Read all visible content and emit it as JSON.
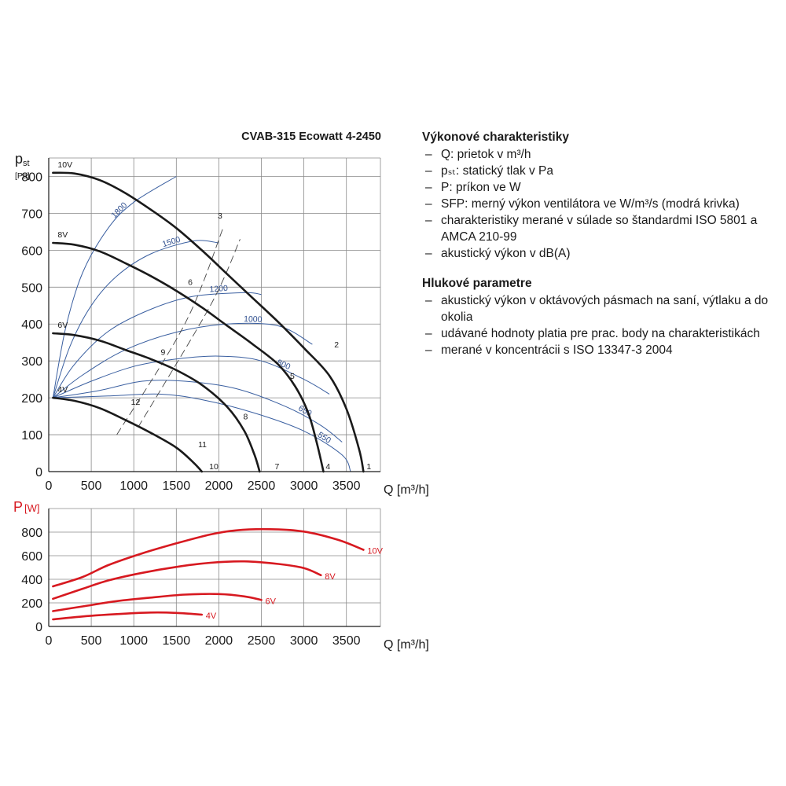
{
  "chart_data": [
    {
      "type": "line",
      "title": "CVAB-315 Ecowatt 4-2450",
      "ylabel_main": "p",
      "ylabel_sub": "st",
      "yunit": "[Pa]",
      "xlabel": "Q [m³/h]",
      "xlim": [
        0,
        3900
      ],
      "ylim": [
        0,
        850
      ],
      "xticks": [
        0,
        500,
        1000,
        1500,
        2000,
        2500,
        3000,
        3500
      ],
      "yticks": [
        0,
        100,
        200,
        300,
        400,
        500,
        600,
        700,
        800
      ],
      "grid": true,
      "series": [
        {
          "name": "10V",
          "points": [
            [
              50,
              810
            ],
            [
              300,
              808
            ],
            [
              600,
              790
            ],
            [
              900,
              755
            ],
            [
              1200,
              710
            ],
            [
              1500,
              660
            ],
            [
              1800,
              600
            ],
            [
              2100,
              535
            ],
            [
              2400,
              470
            ],
            [
              2700,
              405
            ],
            [
              3000,
              335
            ],
            [
              3300,
              260
            ],
            [
              3500,
              170
            ],
            [
              3650,
              60
            ],
            [
              3700,
              0
            ]
          ]
        },
        {
          "name": "8V",
          "points": [
            [
              50,
              620
            ],
            [
              300,
              615
            ],
            [
              600,
              597
            ],
            [
              900,
              565
            ],
            [
              1200,
              530
            ],
            [
              1500,
              490
            ],
            [
              1800,
              445
            ],
            [
              2100,
              395
            ],
            [
              2400,
              345
            ],
            [
              2700,
              290
            ],
            [
              2900,
              230
            ],
            [
              3050,
              160
            ],
            [
              3150,
              80
            ],
            [
              3230,
              0
            ]
          ]
        },
        {
          "name": "6V",
          "points": [
            [
              50,
              375
            ],
            [
              300,
              370
            ],
            [
              600,
              355
            ],
            [
              900,
              330
            ],
            [
              1200,
              305
            ],
            [
              1500,
              275
            ],
            [
              1800,
              235
            ],
            [
              2100,
              175
            ],
            [
              2300,
              110
            ],
            [
              2420,
              45
            ],
            [
              2480,
              0
            ]
          ]
        },
        {
          "name": "4V",
          "points": [
            [
              50,
              200
            ],
            [
              300,
              192
            ],
            [
              600,
              172
            ],
            [
              900,
              140
            ],
            [
              1200,
              105
            ],
            [
              1500,
              65
            ],
            [
              1700,
              25
            ],
            [
              1800,
              0
            ]
          ]
        }
      ],
      "sfp_curves": [
        {
          "label": "1800",
          "points": [
            [
              50,
              200
            ],
            [
              200,
              390
            ],
            [
              400,
              540
            ],
            [
              700,
              660
            ],
            [
              1000,
              730
            ],
            [
              1500,
              800
            ]
          ]
        },
        {
          "label": "1500",
          "points": [
            [
              50,
              200
            ],
            [
              250,
              340
            ],
            [
              500,
              450
            ],
            [
              800,
              530
            ],
            [
              1200,
              590
            ],
            [
              1700,
              625
            ],
            [
              2000,
              620
            ]
          ]
        },
        {
          "label": "1200",
          "points": [
            [
              50,
              200
            ],
            [
              300,
              290
            ],
            [
              700,
              380
            ],
            [
              1200,
              440
            ],
            [
              1700,
              475
            ],
            [
              2300,
              485
            ],
            [
              2500,
              480
            ]
          ]
        },
        {
          "label": "1000",
          "points": [
            [
              50,
              200
            ],
            [
              400,
              262
            ],
            [
              900,
              330
            ],
            [
              1500,
              378
            ],
            [
              2100,
              400
            ],
            [
              2700,
              395
            ],
            [
              3100,
              345
            ]
          ]
        },
        {
          "label": "800",
          "points": [
            [
              50,
              200
            ],
            [
              500,
              245
            ],
            [
              1000,
              285
            ],
            [
              1500,
              305
            ],
            [
              2000,
              313
            ],
            [
              2500,
              300
            ],
            [
              3000,
              250
            ],
            [
              3300,
              210
            ]
          ]
        },
        {
          "label": "650",
          "points": [
            [
              50,
              200
            ],
            [
              600,
              220
            ],
            [
              1100,
              245
            ],
            [
              1600,
              245
            ],
            [
              2200,
              225
            ],
            [
              2800,
              175
            ],
            [
              3200,
              125
            ],
            [
              3450,
              80
            ]
          ]
        },
        {
          "label": "550",
          "points": [
            [
              50,
              200
            ],
            [
              700,
              205
            ],
            [
              1300,
              210
            ],
            [
              1800,
              195
            ],
            [
              2400,
              160
            ],
            [
              3000,
              110
            ],
            [
              3450,
              45
            ],
            [
              3550,
              0
            ]
          ]
        }
      ],
      "operating_points": [
        {
          "label": "1",
          "q": 3700,
          "p": 0
        },
        {
          "label": "2",
          "q": 3320,
          "p": 330
        },
        {
          "label": "3",
          "q": 1950,
          "p": 680
        },
        {
          "label": "4",
          "q": 3220,
          "p": 0
        },
        {
          "label": "5",
          "q": 2800,
          "p": 245
        },
        {
          "label": "6",
          "q": 1600,
          "p": 500
        },
        {
          "label": "7",
          "q": 2620,
          "p": 0
        },
        {
          "label": "8",
          "q": 2250,
          "p": 135
        },
        {
          "label": "9",
          "q": 1280,
          "p": 310
        },
        {
          "label": "10",
          "q": 1850,
          "p": 0
        },
        {
          "label": "11",
          "q": 1720,
          "p": 60
        },
        {
          "label": "12",
          "q": 930,
          "p": 175
        }
      ],
      "system_lines": [
        {
          "points": [
            [
              800,
              100
            ],
            [
              1600,
              400
            ],
            [
              2050,
              660
            ]
          ]
        },
        {
          "points": [
            [
              1050,
              120
            ],
            [
              1900,
              450
            ],
            [
              2250,
              630
            ]
          ]
        }
      ]
    },
    {
      "type": "line",
      "ylabel_main": "P",
      "yunit": "[W]",
      "xlabel": "Q [m³/h]",
      "xlim": [
        0,
        3900
      ],
      "ylim": [
        0,
        1000
      ],
      "xticks": [
        0,
        500,
        1000,
        1500,
        2000,
        2500,
        3000,
        3500
      ],
      "yticks": [
        0,
        200,
        400,
        600,
        800
      ],
      "grid": true,
      "series": [
        {
          "name": "10V",
          "points": [
            [
              50,
              340
            ],
            [
              400,
              420
            ],
            [
              700,
              520
            ],
            [
              1100,
              620
            ],
            [
              1500,
              705
            ],
            [
              1900,
              780
            ],
            [
              2200,
              815
            ],
            [
              2600,
              825
            ],
            [
              3000,
              805
            ],
            [
              3400,
              735
            ],
            [
              3700,
              650
            ]
          ]
        },
        {
          "name": "8V",
          "points": [
            [
              50,
              235
            ],
            [
              400,
              320
            ],
            [
              700,
              390
            ],
            [
              1100,
              455
            ],
            [
              1500,
              505
            ],
            [
              1900,
              540
            ],
            [
              2300,
              552
            ],
            [
              2700,
              530
            ],
            [
              3000,
              495
            ],
            [
              3200,
              435
            ]
          ]
        },
        {
          "name": "6V",
          "points": [
            [
              50,
              130
            ],
            [
              400,
              170
            ],
            [
              800,
              215
            ],
            [
              1200,
              245
            ],
            [
              1600,
              270
            ],
            [
              2000,
              275
            ],
            [
              2300,
              255
            ],
            [
              2500,
              225
            ]
          ]
        },
        {
          "name": "4V",
          "points": [
            [
              50,
              60
            ],
            [
              400,
              85
            ],
            [
              800,
              105
            ],
            [
              1200,
              118
            ],
            [
              1500,
              115
            ],
            [
              1800,
              100
            ]
          ]
        }
      ]
    }
  ],
  "info": {
    "heading1": "Výkonové charakteristiky",
    "items1": [
      "Q: prietok v m³/h",
      "pₛₜ: statický tlak v Pa",
      "P: príkon ve W",
      "SFP: merný výkon ventilátora ve W/m³/s (modrá krivka)",
      "charakteristiky merané v súlade so štandardmi ISO 5801 a AMCA 210-99",
      "akustický výkon v dB(A)"
    ],
    "heading2": "Hlukové parametre",
    "items2": [
      "akustický výkon v oktávových pásmach na saní, výtlaku a do okolia",
      "udávané hodnoty platia pre prac. body na charakteristikách",
      "merané v koncentrácii s ISO 13347-3 2004"
    ]
  },
  "colors": {
    "fan_curve": "#1a1a1a",
    "sfp_curve": "#3a5fa0",
    "power_curve": "#d71920",
    "grid": "#8a8a8a"
  }
}
